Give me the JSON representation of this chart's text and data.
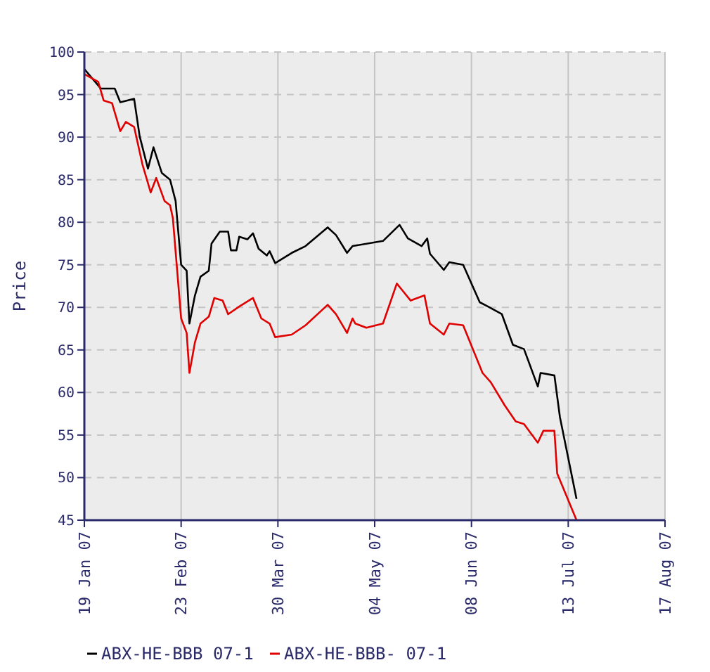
{
  "chart_data": {
    "type": "line",
    "ylabel": "Price",
    "xlim": [
      "2007-01-19",
      "2007-08-17"
    ],
    "xticks": [
      {
        "value": "2007-01-19",
        "label": "19 Jan 07"
      },
      {
        "value": "2007-02-23",
        "label": "23 Feb 07"
      },
      {
        "value": "2007-03-30",
        "label": "30 Mar 07"
      },
      {
        "value": "2007-05-04",
        "label": "04 May 07"
      },
      {
        "value": "2007-06-08",
        "label": "08 Jun 07"
      },
      {
        "value": "2007-07-13",
        "label": "13 Jul 07"
      },
      {
        "value": "2007-08-17",
        "label": "17 Aug 07"
      }
    ],
    "ylim": [
      45,
      100
    ],
    "yticks": [
      45,
      50,
      55,
      60,
      65,
      70,
      75,
      80,
      85,
      90,
      95,
      100
    ],
    "grid": true,
    "legend": "bottom",
    "marker": "none",
    "line_style": "solid",
    "series": [
      {
        "name": "ABX-HE-BBB 07-1",
        "color": "#000000",
        "x": [
          "2007-01-19",
          "2007-01-25",
          "2007-01-30",
          "2007-02-01",
          "2007-02-06",
          "2007-02-08",
          "2007-02-11",
          "2007-02-13",
          "2007-02-16",
          "2007-02-19",
          "2007-02-21",
          "2007-02-23",
          "2007-02-25",
          "2007-02-26",
          "2007-02-28",
          "2007-03-02",
          "2007-03-05",
          "2007-03-06",
          "2007-03-09",
          "2007-03-12",
          "2007-03-13",
          "2007-03-15",
          "2007-03-16",
          "2007-03-19",
          "2007-03-21",
          "2007-03-23",
          "2007-03-26",
          "2007-03-27",
          "2007-03-29",
          "2007-04-04",
          "2007-04-09",
          "2007-04-17",
          "2007-04-20",
          "2007-04-24",
          "2007-04-26",
          "2007-05-07",
          "2007-05-13",
          "2007-05-16",
          "2007-05-21",
          "2007-05-23",
          "2007-05-24",
          "2007-05-29",
          "2007-05-31",
          "2007-06-05",
          "2007-06-11",
          "2007-06-14",
          "2007-06-19",
          "2007-06-23",
          "2007-06-27",
          "2007-07-02",
          "2007-07-03",
          "2007-07-08",
          "2007-07-10",
          "2007-07-16"
        ],
        "values": [
          98.0,
          95.7,
          95.7,
          94.1,
          94.5,
          90.1,
          86.3,
          88.8,
          85.8,
          85.0,
          82.5,
          75.0,
          74.3,
          68.1,
          71.4,
          73.6,
          74.3,
          77.5,
          78.9,
          78.9,
          76.7,
          76.7,
          78.3,
          78.0,
          78.7,
          76.9,
          76.1,
          76.6,
          75.2,
          76.4,
          77.2,
          79.4,
          78.5,
          76.4,
          77.2,
          77.8,
          79.7,
          78.1,
          77.2,
          78.1,
          76.3,
          74.4,
          75.3,
          75.0,
          70.6,
          70.1,
          69.2,
          65.6,
          65.1,
          60.7,
          62.3,
          62.0,
          57.1,
          47.5
        ]
      },
      {
        "name": "ABX-HE-BBB- 07-1",
        "color": "#e00000",
        "x": [
          "2007-01-19",
          "2007-01-24",
          "2007-01-26",
          "2007-01-29",
          "2007-02-01",
          "2007-02-03",
          "2007-02-06",
          "2007-02-09",
          "2007-02-12",
          "2007-02-14",
          "2007-02-17",
          "2007-02-19",
          "2007-02-20",
          "2007-02-23",
          "2007-02-25",
          "2007-02-26",
          "2007-02-28",
          "2007-03-02",
          "2007-03-05",
          "2007-03-07",
          "2007-03-10",
          "2007-03-12",
          "2007-03-16",
          "2007-03-21",
          "2007-03-24",
          "2007-03-27",
          "2007-03-29",
          "2007-04-04",
          "2007-04-09",
          "2007-04-17",
          "2007-04-20",
          "2007-04-24",
          "2007-04-26",
          "2007-04-27",
          "2007-05-01",
          "2007-05-07",
          "2007-05-12",
          "2007-05-14",
          "2007-05-17",
          "2007-05-22",
          "2007-05-24",
          "2007-05-29",
          "2007-05-31",
          "2007-06-05",
          "2007-06-12",
          "2007-06-15",
          "2007-06-20",
          "2007-06-24",
          "2007-06-27",
          "2007-07-02",
          "2007-07-04",
          "2007-07-08",
          "2007-07-09",
          "2007-07-16"
        ],
        "values": [
          97.4,
          96.5,
          94.3,
          94.0,
          90.7,
          91.8,
          91.2,
          86.8,
          83.5,
          85.2,
          82.5,
          82.0,
          80.5,
          68.7,
          67.0,
          62.3,
          65.9,
          68.1,
          68.9,
          71.1,
          70.8,
          69.2,
          70.1,
          71.1,
          68.7,
          68.1,
          66.5,
          66.8,
          67.9,
          70.3,
          69.2,
          67.0,
          68.7,
          68.1,
          67.6,
          68.1,
          72.8,
          72.0,
          70.8,
          71.4,
          68.1,
          66.8,
          68.1,
          67.9,
          62.3,
          61.2,
          58.5,
          56.6,
          56.3,
          54.1,
          55.5,
          55.5,
          50.5,
          45.0
        ]
      }
    ]
  }
}
